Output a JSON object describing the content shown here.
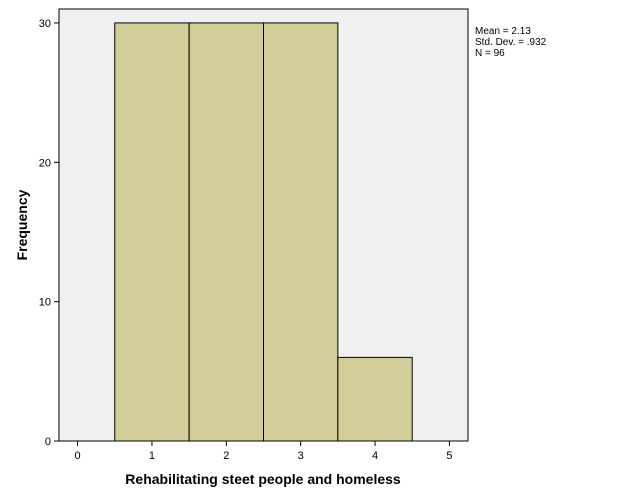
{
  "chart_data": {
    "type": "bar",
    "subtype": "histogram",
    "bins": [
      {
        "from": 0.5,
        "to": 1.5,
        "count": 30
      },
      {
        "from": 1.5,
        "to": 2.5,
        "count": 30
      },
      {
        "from": 2.5,
        "to": 3.5,
        "count": 30
      },
      {
        "from": 3.5,
        "to": 4.5,
        "count": 6
      }
    ],
    "xlabel": "Rehabilitating steet people and homeless",
    "ylabel": "Frequency",
    "xlim": [
      -0.25,
      5.25
    ],
    "ylim": [
      0,
      31
    ],
    "xticks": [
      "0",
      "1",
      "2",
      "3",
      "4",
      "5"
    ],
    "yticks": [
      "0",
      "10",
      "20",
      "30"
    ],
    "grid": false,
    "colors": {
      "bar_fill": "#d3ce99",
      "bar_stroke": "#000000",
      "plot_background": "#f0f0f0"
    },
    "stats": {
      "mean": "Mean = 2.13",
      "std": "Std. Dev. = .932",
      "n": "N = 96"
    }
  }
}
